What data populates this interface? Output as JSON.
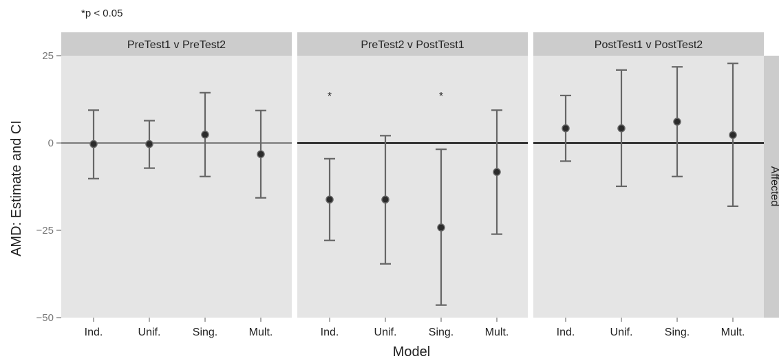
{
  "chart_data": {
    "type": "scatter",
    "subtype": "point-with-errorbars, faceted",
    "note": "*p < 0.05",
    "xlabel": "Model",
    "ylabel": "AMD: Estimate and CI",
    "row_strip": "Affected",
    "ylim": [
      -50,
      25
    ],
    "yticks": [
      25,
      0,
      -25,
      -50
    ],
    "ytick_labels": [
      "25",
      "0",
      "−25",
      "−50"
    ],
    "categories": [
      "Ind.",
      "Unif.",
      "Sing.",
      "Mult."
    ],
    "grid": false,
    "reference_line": 0,
    "panels": [
      {
        "title": "PreTest1 v PreTest2",
        "points": [
          {
            "x": "Ind.",
            "estimate": -0.3,
            "lower": -10.2,
            "upper": 9.4,
            "significant": false
          },
          {
            "x": "Unif.",
            "estimate": -0.3,
            "lower": -7.2,
            "upper": 6.4,
            "significant": false
          },
          {
            "x": "Sing.",
            "estimate": 2.4,
            "lower": -9.6,
            "upper": 14.4,
            "significant": false
          },
          {
            "x": "Mult.",
            "estimate": -3.2,
            "lower": -15.7,
            "upper": 9.3,
            "significant": false
          }
        ]
      },
      {
        "title": "PreTest2 v PostTest1",
        "points": [
          {
            "x": "Ind.",
            "estimate": -16.2,
            "lower": -27.9,
            "upper": -4.5,
            "significant": true
          },
          {
            "x": "Unif.",
            "estimate": -16.2,
            "lower": -34.6,
            "upper": 2.1,
            "significant": false
          },
          {
            "x": "Sing.",
            "estimate": -24.2,
            "lower": -46.4,
            "upper": -1.8,
            "significant": true
          },
          {
            "x": "Mult.",
            "estimate": -8.3,
            "lower": -26.1,
            "upper": 9.4,
            "significant": false
          }
        ]
      },
      {
        "title": "PostTest1 v PostTest2",
        "points": [
          {
            "x": "Ind.",
            "estimate": 4.2,
            "lower": -5.2,
            "upper": 13.6,
            "significant": false
          },
          {
            "x": "Unif.",
            "estimate": 4.2,
            "lower": -12.4,
            "upper": 20.9,
            "significant": false
          },
          {
            "x": "Sing.",
            "estimate": 6.1,
            "lower": -9.6,
            "upper": 21.8,
            "significant": false
          },
          {
            "x": "Mult.",
            "estimate": 2.3,
            "lower": -18.1,
            "upper": 22.8,
            "significant": false
          }
        ]
      }
    ],
    "significance_marker": "*",
    "colors": {
      "panel_background": "#e5e5e5",
      "strip_background": "#cccccc",
      "errorbar": "#666666",
      "point_fill": "#2b2b2b",
      "zero_line": "#000000",
      "tick_text": "#777777",
      "text": "#222222"
    }
  }
}
